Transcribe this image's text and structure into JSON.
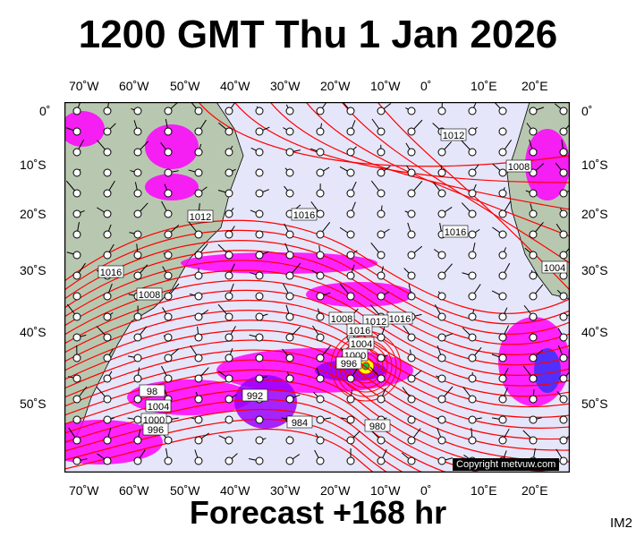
{
  "header": {
    "title": "1200 GMT Thu 1 Jan 2026"
  },
  "footer": {
    "forecast": "Forecast +168 hr",
    "image_code": "IM2"
  },
  "axes": {
    "lon_labels": [
      "70˚W",
      "60˚W",
      "50˚W",
      "40˚W",
      "30˚W",
      "20˚W",
      "10˚W",
      "0˚",
      "10˚E",
      "20˚E"
    ],
    "lat_labels": [
      "0˚",
      "10˚S",
      "20˚S",
      "30˚S",
      "40˚S",
      "50˚S"
    ]
  },
  "map": {
    "isobar_labels": [
      "1012",
      "1008",
      "1016",
      "1012",
      "1016",
      "1016",
      "1008",
      "1004",
      "1016",
      "1008",
      "1012",
      "1016",
      "1004",
      "1000",
      "996",
      "98",
      "1004",
      "1000",
      "996",
      "992",
      "980",
      "984"
    ],
    "colors": {
      "ocean": "#e6e6fa",
      "land": "#b8c8b0",
      "isobar": "#ff0000",
      "precip_magenta": "#ff00ff",
      "precip_purple": "#9900ff",
      "precip_blue": "#3333ff"
    },
    "copyright": "Copyright metvuw.com"
  }
}
